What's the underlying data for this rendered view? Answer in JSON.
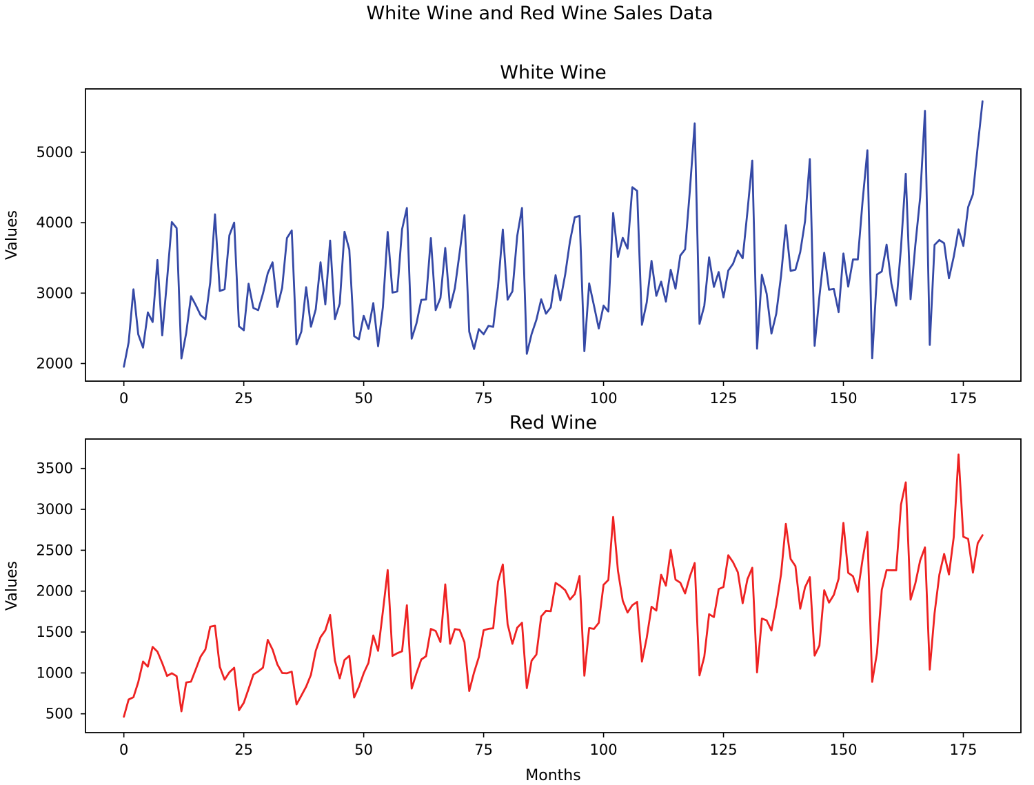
{
  "figure": {
    "suptitle": "White Wine and Red Wine Sales Data"
  },
  "chart_data": [
    {
      "type": "line",
      "title": "White Wine",
      "xlabel": "",
      "ylabel": "Values",
      "xlim": [
        -8,
        187
      ],
      "ylim": [
        1750,
        5900
      ],
      "xticks": [
        0,
        25,
        50,
        75,
        100,
        125,
        150,
        175
      ],
      "xtick_labels": [
        "0",
        "25",
        "50",
        "75",
        "100",
        "125",
        "150",
        "175"
      ],
      "yticks": [
        2000,
        3000,
        4000,
        5000
      ],
      "ytick_labels": [
        "2000",
        "3000",
        "4000",
        "5000"
      ],
      "grid": false,
      "color": "#3549a6",
      "series": [
        {
          "name": "White Wine",
          "values": [
            1954,
            2302,
            3054,
            2414,
            2226,
            2725,
            2589,
            3470,
            2400,
            3180,
            4009,
            3924,
            2072,
            2434,
            2956,
            2828,
            2687,
            2629,
            3150,
            4119,
            3030,
            3055,
            3821,
            4001,
            2529,
            2472,
            3134,
            2789,
            2758,
            2993,
            3282,
            3437,
            2804,
            3076,
            3782,
            3889,
            2271,
            2452,
            3084,
            2522,
            2769,
            3438,
            2839,
            3746,
            2632,
            2851,
            3871,
            3618,
            2389,
            2344,
            2678,
            2492,
            2858,
            2246,
            2800,
            3869,
            3007,
            3023,
            3907,
            4209,
            2353,
            2570,
            2903,
            2910,
            3782,
            2759,
            2931,
            3641,
            2794,
            3070,
            3576,
            4106,
            2452,
            2206,
            2488,
            2416,
            2534,
            2521,
            3093,
            3903,
            2907,
            3025,
            3812,
            4209,
            2138,
            2419,
            2622,
            2912,
            2708,
            2798,
            3254,
            2895,
            3263,
            3736,
            4077,
            4097,
            2175,
            3138,
            2823,
            2498,
            2822,
            2738,
            4137,
            3515,
            3785,
            3632,
            4504,
            4451,
            2550,
            2867,
            3458,
            2961,
            3163,
            2880,
            3331,
            3062,
            3534,
            3622,
            4464,
            5411,
            2564,
            2820,
            3508,
            3088,
            3299,
            2939,
            3320,
            3418,
            3604,
            3495,
            4163,
            4882,
            2211,
            3260,
            2992,
            2425,
            2707,
            3244,
            3965,
            3315,
            3333,
            3583,
            4021,
            4904,
            2252,
            2952,
            3573,
            3048,
            3059,
            2731,
            3563,
            3092,
            3478,
            3478,
            4308,
            5029,
            2075,
            3264,
            3308,
            3688,
            3136,
            2824,
            3644,
            4694,
            2914,
            3686,
            4358,
            5587,
            2265,
            3685,
            3754,
            3708,
            3210,
            3517,
            3905,
            3670,
            4221,
            4404,
            5086,
            5725
          ]
        }
      ]
    },
    {
      "type": "line",
      "title": "Red Wine",
      "xlabel": "Months",
      "ylabel": "Values",
      "xlim": [
        -8,
        187
      ],
      "ylim": [
        270,
        3860
      ],
      "xticks": [
        0,
        25,
        50,
        75,
        100,
        125,
        150,
        175
      ],
      "xtick_labels": [
        "0",
        "25",
        "50",
        "75",
        "100",
        "125",
        "150",
        "175"
      ],
      "yticks": [
        500,
        1000,
        1500,
        2000,
        2500,
        3000,
        3500
      ],
      "ytick_labels": [
        "500",
        "1000",
        "1500",
        "2000",
        "2500",
        "3000",
        "3500"
      ],
      "grid": false,
      "color": "#ee2222",
      "series": [
        {
          "name": "Red Wine",
          "values": [
            464,
            675,
            703,
            887,
            1139,
            1077,
            1318,
            1260,
            1120,
            963,
            996,
            960,
            530,
            883,
            894,
            1045,
            1199,
            1287,
            1565,
            1577,
            1076,
            918,
            1008,
            1063,
            544,
            635,
            804,
            980,
            1018,
            1064,
            1404,
            1286,
            1104,
            999,
            996,
            1015,
            615,
            722,
            832,
            977,
            1270,
            1437,
            1520,
            1708,
            1151,
            934,
            1159,
            1209,
            699,
            830,
            996,
            1124,
            1458,
            1270,
            1753,
            2258,
            1208,
            1241,
            1265,
            1828,
            809,
            997,
            1164,
            1205,
            1538,
            1513,
            1378,
            2083,
            1357,
            1536,
            1526,
            1376,
            779,
            1005,
            1193,
            1522,
            1539,
            1546,
            2116,
            2326,
            1596,
            1356,
            1553,
            1613,
            814,
            1150,
            1225,
            1691,
            1759,
            1754,
            2100,
            2062,
            2012,
            1897,
            1964,
            2186,
            966,
            1549,
            1538,
            1612,
            2078,
            2137,
            2907,
            2249,
            1883,
            1739,
            1828,
            1868,
            1138,
            1430,
            1809,
            1763,
            2200,
            2067,
            2503,
            2141,
            2103,
            1972,
            2181,
            2344,
            970,
            1199,
            1718,
            1683,
            2025,
            2051,
            2439,
            2353,
            2230,
            1852,
            2147,
            2286,
            1007,
            1665,
            1642,
            1518,
            1831,
            2207,
            2822,
            2393,
            2306,
            1785,
            2047,
            2171,
            1212,
            1335,
            2011,
            1860,
            1954,
            2152,
            2835,
            2224,
            2182,
            1992,
            2389,
            2724,
            891,
            1247,
            2017,
            2257,
            2255,
            2255,
            3057,
            3330,
            1896,
            2096,
            2374,
            2535,
            1041,
            1728,
            2201,
            2455,
            2204,
            2660,
            3670,
            2665,
            2639,
            2226,
            2586,
            2684
          ]
        }
      ]
    }
  ]
}
